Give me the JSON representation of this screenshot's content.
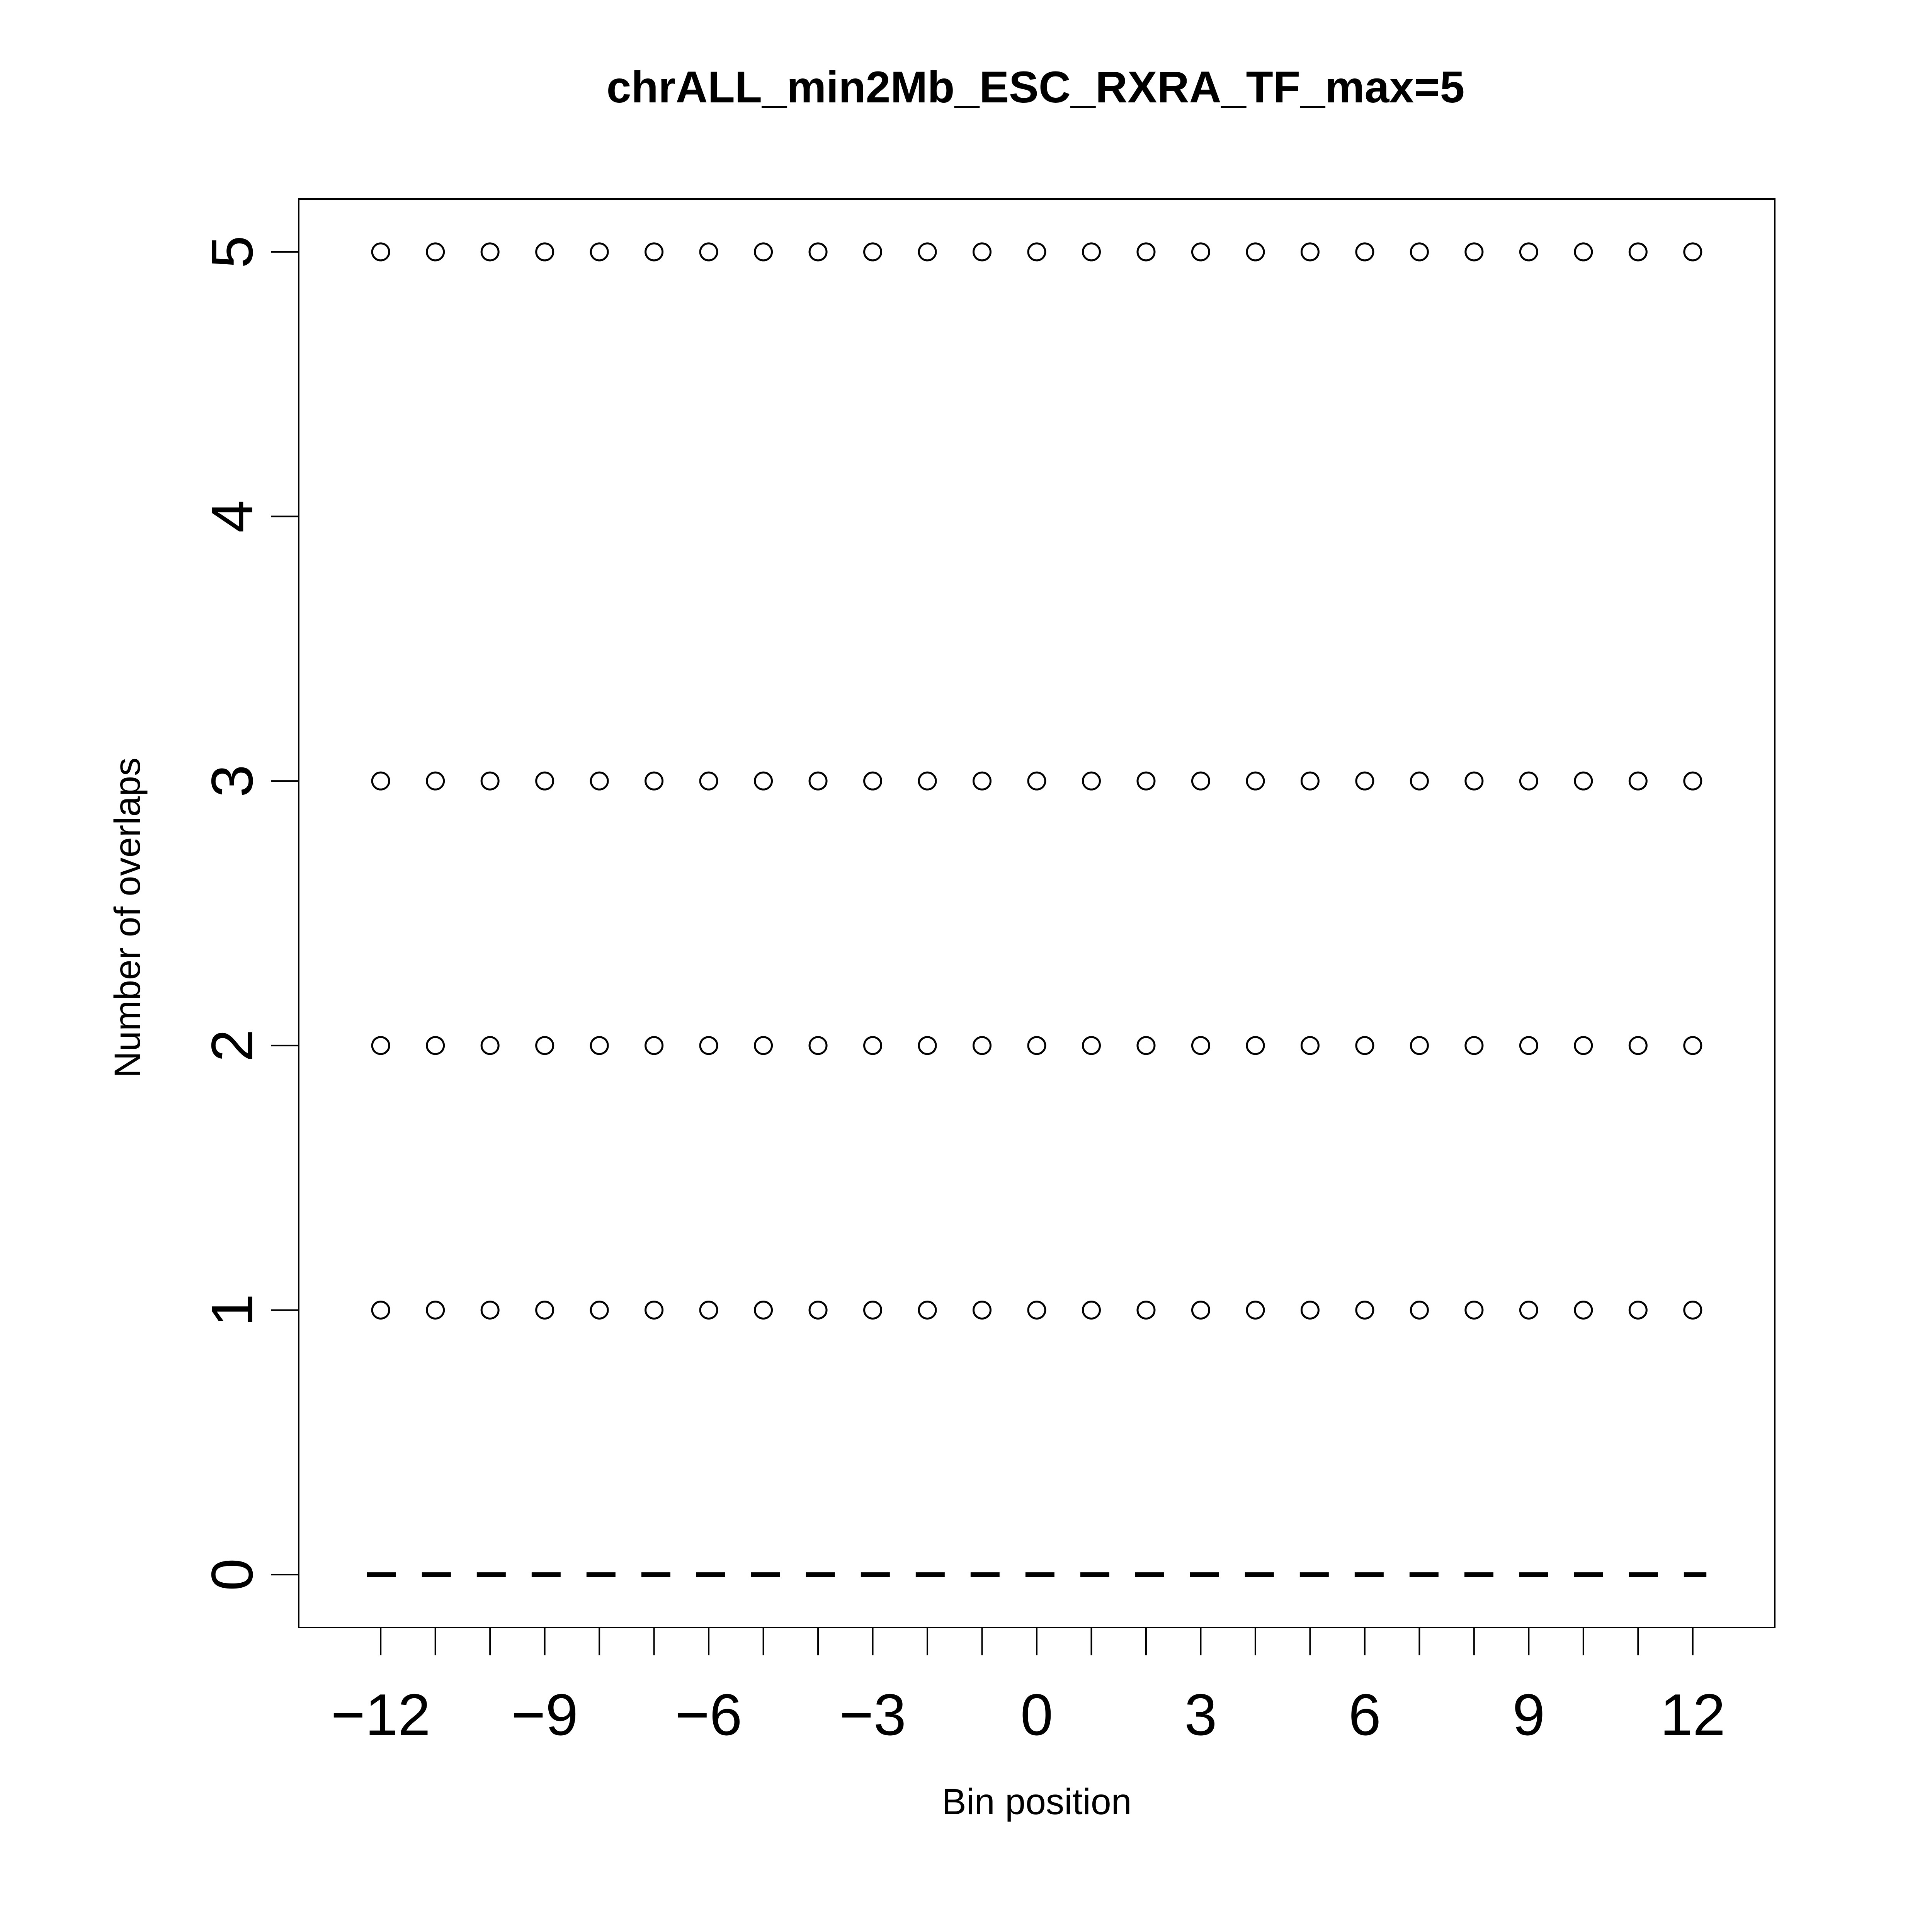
{
  "chart_data": {
    "type": "scatter",
    "title": "chrALL_min2Mb_ESC_RXRA_TF_max=5",
    "xlabel": "Bin position",
    "ylabel": "Number of overlaps",
    "xlim": [
      -13.5,
      13.5
    ],
    "ylim": [
      -0.2,
      5.2
    ],
    "x_ticks_minor": [
      -12,
      -11,
      -10,
      -9,
      -8,
      -7,
      -6,
      -5,
      -4,
      -3,
      -2,
      -1,
      0,
      1,
      2,
      3,
      4,
      5,
      6,
      7,
      8,
      9,
      10,
      11,
      12
    ],
    "x_tick_labels": [
      "−12",
      "−9",
      "−6",
      "−3",
      "0",
      "3",
      "6",
      "9",
      "12"
    ],
    "x_tick_label_values": [
      -12,
      -9,
      -6,
      -3,
      0,
      3,
      6,
      9,
      12
    ],
    "y_ticks": [
      0,
      1,
      2,
      3,
      4,
      5
    ],
    "y_tick_labels": [
      "0",
      "1",
      "2",
      "3",
      "4",
      "5"
    ],
    "x": [
      -12,
      -11,
      -10,
      -9,
      -8,
      -7,
      -6,
      -5,
      -4,
      -3,
      -2,
      -1,
      0,
      1,
      2,
      3,
      4,
      5,
      6,
      7,
      8,
      9,
      10,
      11,
      12
    ],
    "series": [
      {
        "marker": "open-circle",
        "y_value": 5
      },
      {
        "marker": "open-circle",
        "y_value": 3
      },
      {
        "marker": "open-circle",
        "y_value": 2
      },
      {
        "marker": "open-circle",
        "y_value": 1
      }
    ],
    "reference_line": {
      "y": 0,
      "style": "dashed",
      "x_range": [
        -12.25,
        12.25
      ]
    },
    "grid": false,
    "legend": "none",
    "color": "#000000"
  }
}
